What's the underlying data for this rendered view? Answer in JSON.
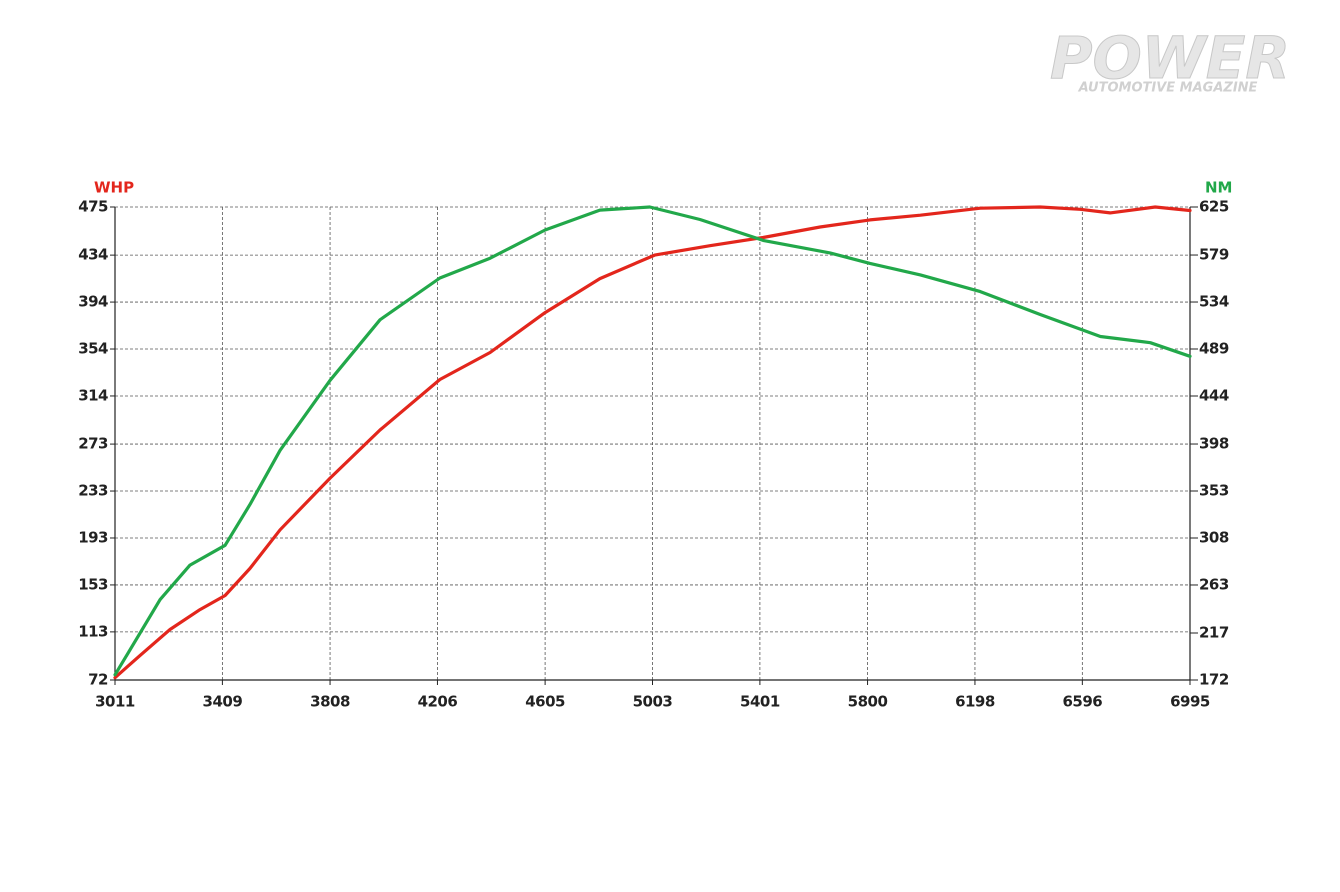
{
  "chart_data": {
    "type": "line",
    "watermark": {
      "title": "POWER",
      "subtitle": "AUTOMOTIVE MAGAZINE"
    },
    "y_label": "WHP",
    "y2_label": "NM",
    "xlim": [
      3011,
      6995
    ],
    "xticks": [
      3011,
      3409,
      3808,
      4206,
      4605,
      5003,
      5401,
      5800,
      6198,
      6596,
      6995
    ],
    "ylim": [
      72,
      475
    ],
    "yticks": [
      72,
      113,
      153,
      193,
      233,
      273,
      314,
      354,
      394,
      434,
      475
    ],
    "y2lim": [
      172,
      625
    ],
    "y2ticks": [
      172,
      217,
      263,
      308,
      353,
      398,
      444,
      489,
      534,
      579,
      625
    ],
    "grid": true,
    "series": [
      {
        "name": "WHP",
        "color": "#e3261c",
        "x": [
          3011,
          3104,
          3215,
          3326,
          3419,
          3511,
          3623,
          3808,
          3993,
          4215,
          4401,
          4605,
          4808,
          5011,
          5216,
          5413,
          5624,
          5809,
          5996,
          6218,
          6440,
          6588,
          6699,
          6866,
          6995
        ],
        "values": [
          74,
          93,
          115,
          132,
          144,
          167,
          200,
          244,
          285,
          328,
          351,
          385,
          414,
          434,
          442,
          449,
          458,
          464,
          468,
          474,
          475,
          473,
          470,
          475,
          472
        ]
      },
      {
        "name": "NM",
        "color": "#22a84a",
        "axis": "y2",
        "x": [
          3011,
          3067,
          3178,
          3289,
          3419,
          3511,
          3623,
          3808,
          3993,
          4215,
          4401,
          4605,
          4808,
          4993,
          5179,
          5413,
          5661,
          5809,
          5996,
          6218,
          6440,
          6663,
          6848,
          6995
        ],
        "values": [
          177,
          201,
          249,
          282,
          301,
          340,
          392,
          459,
          517,
          557,
          576,
          603,
          622,
          625,
          613,
          593,
          581,
          571,
          560,
          544,
          522,
          501,
          495,
          482
        ]
      }
    ]
  }
}
